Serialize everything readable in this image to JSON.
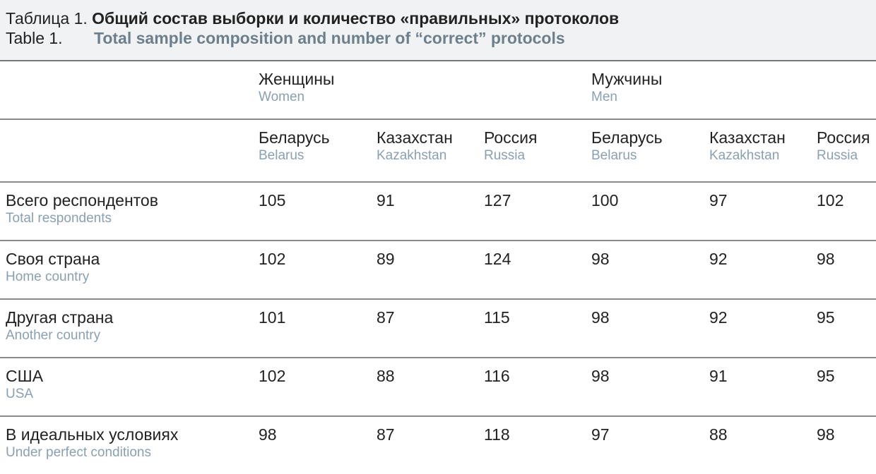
{
  "caption": {
    "ru_prefix": "Таблица 1.",
    "ru_title": "Общий состав выборки и количество «правильных» протоколов",
    "en_prefix": "Table 1.",
    "en_title": "Total sample composition and number of “correct” protocols"
  },
  "groups": [
    {
      "ru": "Женщины",
      "en": "Women"
    },
    {
      "ru": "Мужчины",
      "en": "Men"
    }
  ],
  "columns": [
    {
      "ru": "Беларусь",
      "en": "Belarus"
    },
    {
      "ru": "Казахстан",
      "en": "Kazakhstan"
    },
    {
      "ru": "Россия",
      "en": "Russia"
    },
    {
      "ru": "Беларусь",
      "en": "Belarus"
    },
    {
      "ru": "Казахстан",
      "en": "Kazakhstan"
    },
    {
      "ru": "Россия",
      "en": "Russia"
    }
  ],
  "rows": [
    {
      "ru": "Всего респондентов",
      "en": "Total respondents",
      "values": [
        "105",
        "91",
        "127",
        "100",
        "97",
        "102"
      ]
    },
    {
      "ru": "Своя страна",
      "en": "Home country",
      "values": [
        "102",
        "89",
        "124",
        "98",
        "92",
        "98"
      ]
    },
    {
      "ru": "Другая страна",
      "en": "Another country",
      "values": [
        "101",
        "87",
        "115",
        "98",
        "92",
        "95"
      ]
    },
    {
      "ru": "США",
      "en": "USA",
      "values": [
        "102",
        "88",
        "116",
        "98",
        "91",
        "95"
      ]
    },
    {
      "ru": "В идеальных условиях",
      "en": "Under perfect conditions",
      "values": [
        "98",
        "87",
        "118",
        "97",
        "88",
        "98"
      ]
    }
  ]
}
